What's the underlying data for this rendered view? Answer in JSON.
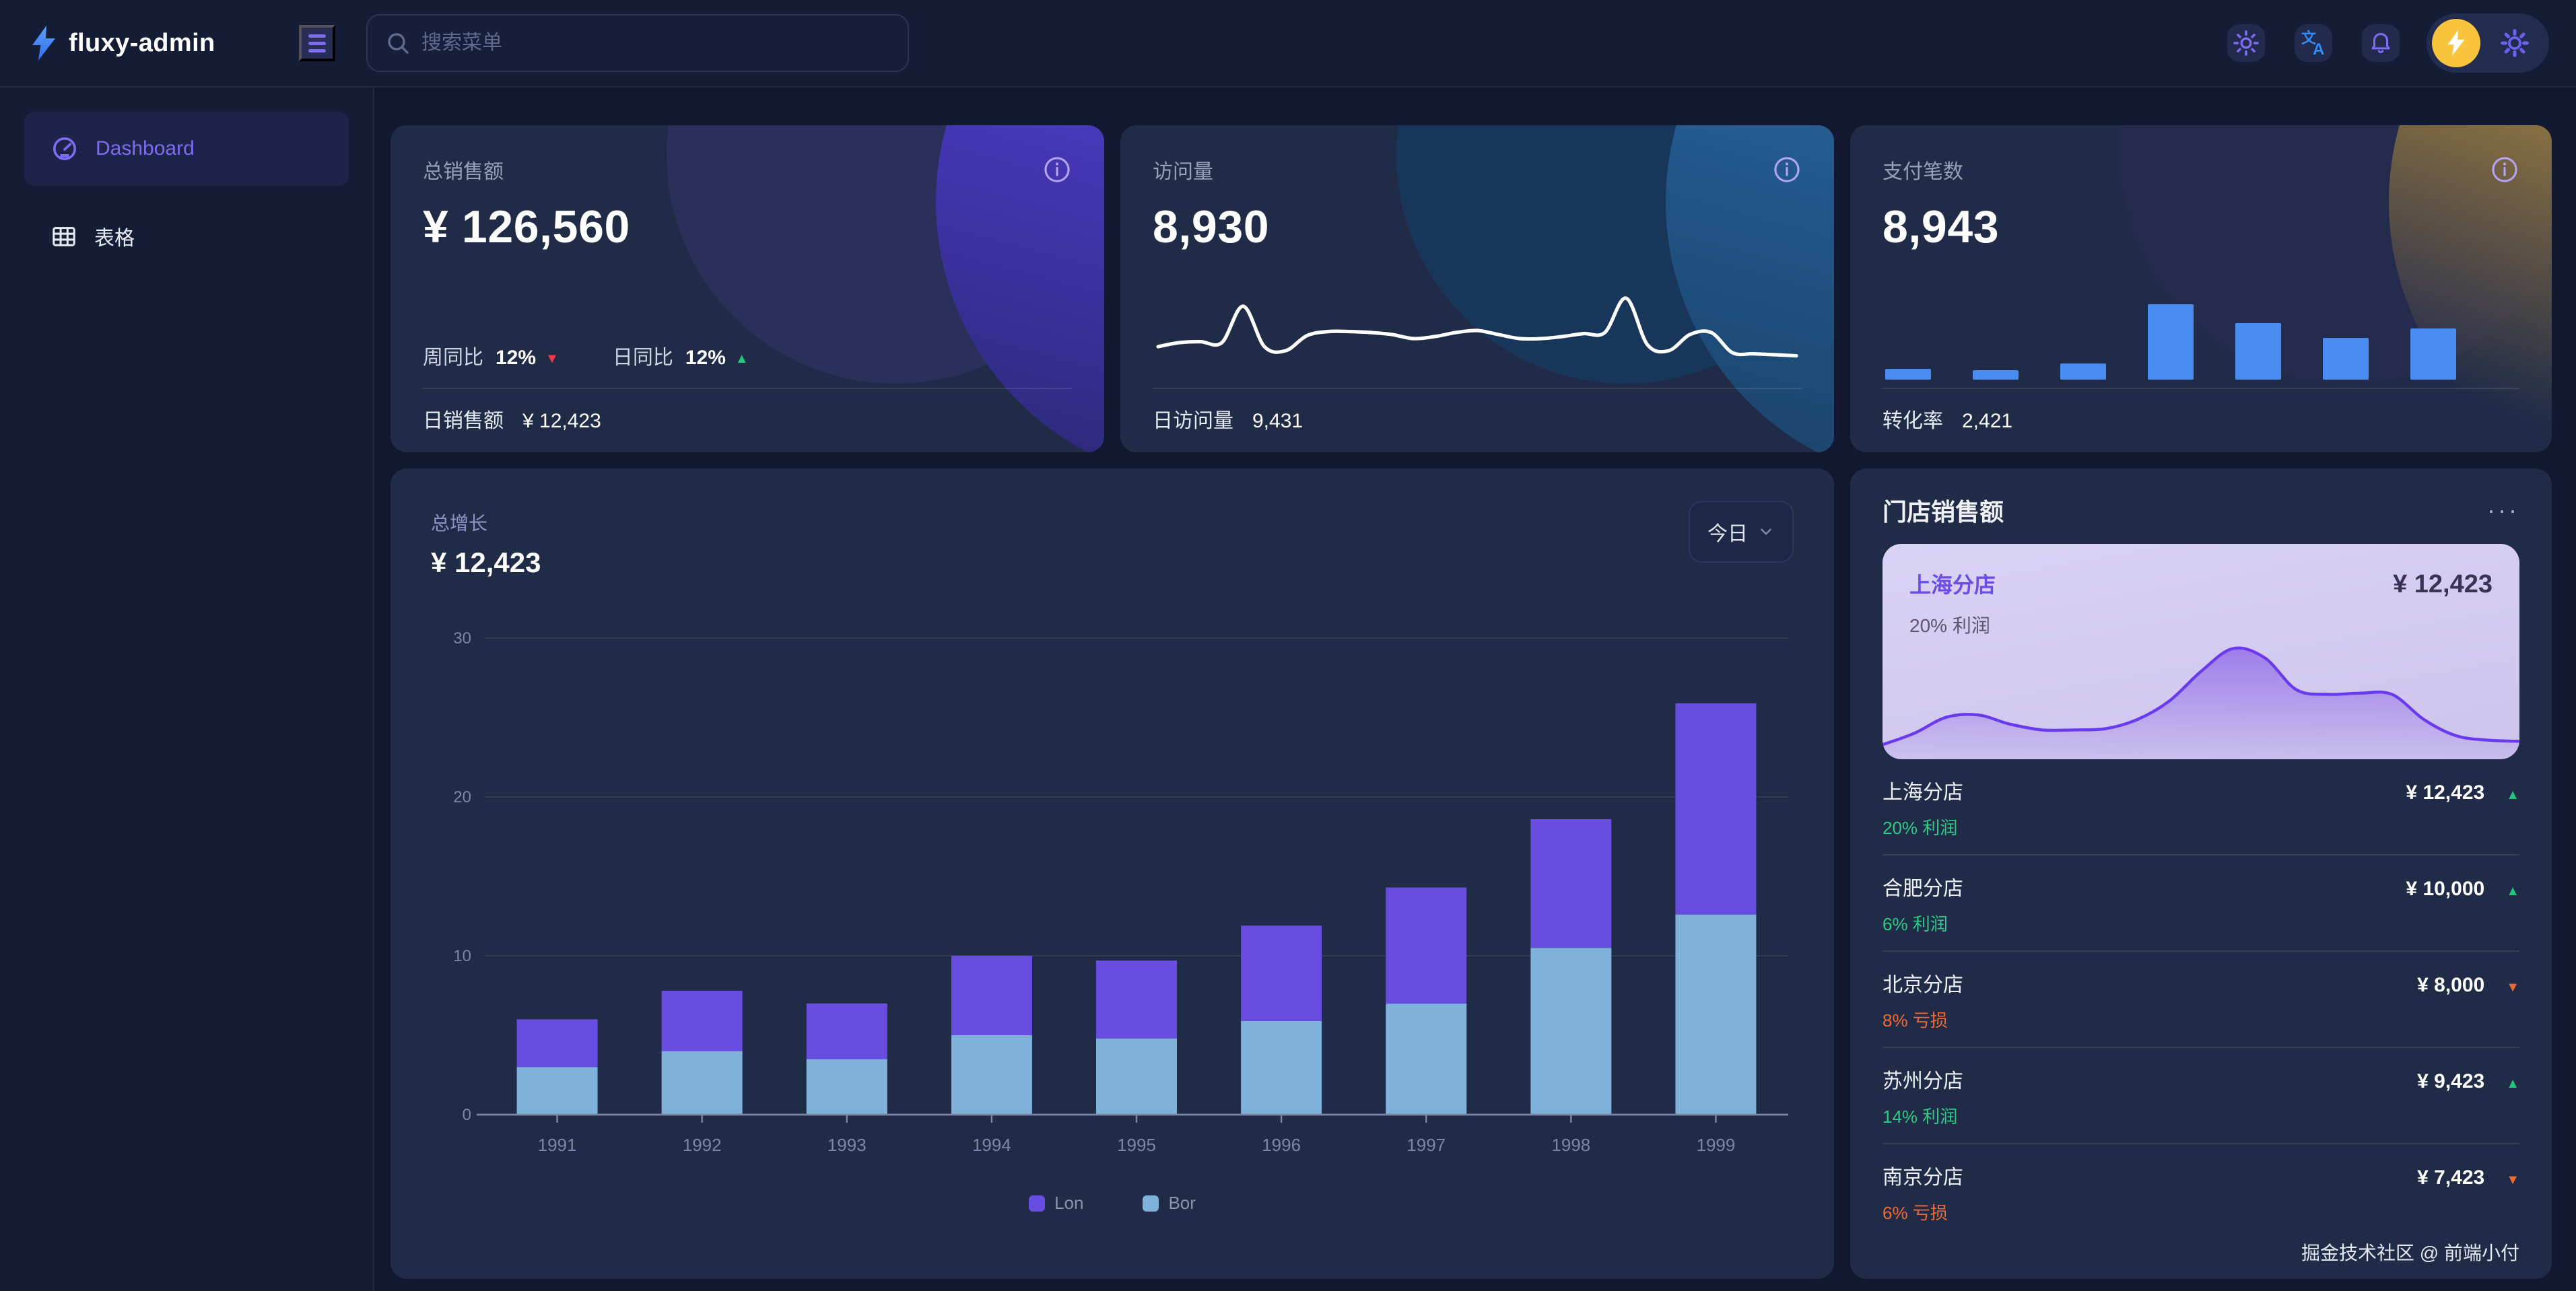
{
  "brand": {
    "name": "fluxy-admin"
  },
  "topbar": {
    "search_placeholder": "搜索菜单"
  },
  "sidebar": {
    "items": [
      {
        "label": "Dashboard",
        "active": true
      },
      {
        "label": "表格",
        "active": false
      }
    ]
  },
  "stats": {
    "sales": {
      "label": "总销售额",
      "value": "¥ 126,560",
      "metrics": [
        {
          "label": "周同比",
          "value": "12%",
          "dir": "down"
        },
        {
          "label": "日同比",
          "value": "12%",
          "dir": "up"
        }
      ],
      "foot_label": "日销售额",
      "foot_value": "¥ 12,423"
    },
    "visits": {
      "label": "访问量",
      "value": "8,930",
      "foot_label": "日访问量",
      "foot_value": "9,431"
    },
    "payments": {
      "label": "支付笔数",
      "value": "8,943",
      "foot_label": "转化率",
      "foot_value": "2,421"
    }
  },
  "growth": {
    "label": "总增长",
    "value": "¥ 12,423",
    "range_label": "今日"
  },
  "stores": {
    "title": "门店销售额",
    "menu_label": "···",
    "highlight": {
      "name": "上海分店",
      "value": "¥ 12,423",
      "note": "20% 利润"
    },
    "rows": [
      {
        "name": "上海分店",
        "value": "¥ 12,423",
        "dir": "up",
        "note": "20% 利润"
      },
      {
        "name": "合肥分店",
        "value": "¥ 10,000",
        "dir": "up",
        "note": "6% 利润"
      },
      {
        "name": "北京分店",
        "value": "¥ 8,000",
        "dir": "down",
        "note": "8% 亏损"
      },
      {
        "name": "苏州分店",
        "value": "¥ 9,423",
        "dir": "up",
        "note": "14% 利润"
      },
      {
        "name": "南京分店",
        "value": "¥ 7,423",
        "dir": "down",
        "note": "6% 亏损"
      }
    ]
  },
  "footer_credit": "掘金技术社区 @ 前端小付",
  "colors": {
    "accent_purple": "#684de0",
    "bor_blue": "#7fb2db",
    "mini_bar_blue": "#4a8df0",
    "up_green": "#22c77d",
    "down_red": "#f5384a",
    "down_orange": "#f06a32",
    "avatar_yellow": "#f8c53c",
    "logo_blue": "#3b82f6",
    "axis_gray": "#7c87a3"
  },
  "chart_data": [
    {
      "id": "growth-stacked",
      "type": "bar",
      "stacked": true,
      "title": "总增长",
      "categories": [
        "1991",
        "1992",
        "1993",
        "1994",
        "1995",
        "1996",
        "1997",
        "1998",
        "1999"
      ],
      "series": [
        {
          "name": "Lon",
          "color": "#684de0",
          "values": [
            3,
            3.8,
            3.5,
            5,
            4.9,
            6,
            7.3,
            8.1,
            13.3
          ]
        },
        {
          "name": "Bor",
          "color": "#7fb2db",
          "values": [
            3,
            4,
            3.5,
            5,
            4.8,
            5.9,
            7,
            10.5,
            12.6
          ]
        }
      ],
      "ylim": [
        0,
        30
      ],
      "yticks": [
        0,
        10,
        20,
        30
      ],
      "legend": [
        "Lon",
        "Bor"
      ],
      "legend_position": "bottom",
      "grid": true
    },
    {
      "id": "visits-sparkline",
      "type": "line",
      "color": "#ffffff",
      "values": [
        2.2,
        2.6,
        2.7,
        2.6,
        6.2,
        2.2,
        1.8,
        3.3,
        3.7,
        3.7,
        3.6,
        3.4,
        3.0,
        3.2,
        3.6,
        3.8,
        3.4,
        3.0,
        3.0,
        3.2,
        3.5,
        3.6,
        7.0,
        2.4,
        1.8,
        3.4,
        3.6,
        1.6,
        1.5,
        1.4,
        1.3
      ]
    },
    {
      "id": "payments-bars",
      "type": "bar",
      "color": "#4a8df0",
      "values": [
        1,
        0.9,
        1.5,
        7,
        5.2,
        3.9,
        4.7
      ]
    },
    {
      "id": "store-area",
      "type": "area",
      "color": "#6a3af0",
      "values": [
        8,
        18,
        32,
        34,
        26,
        21,
        21,
        22,
        30,
        46,
        72,
        92,
        84,
        56,
        52,
        53,
        52,
        30,
        16,
        12,
        11
      ]
    }
  ]
}
